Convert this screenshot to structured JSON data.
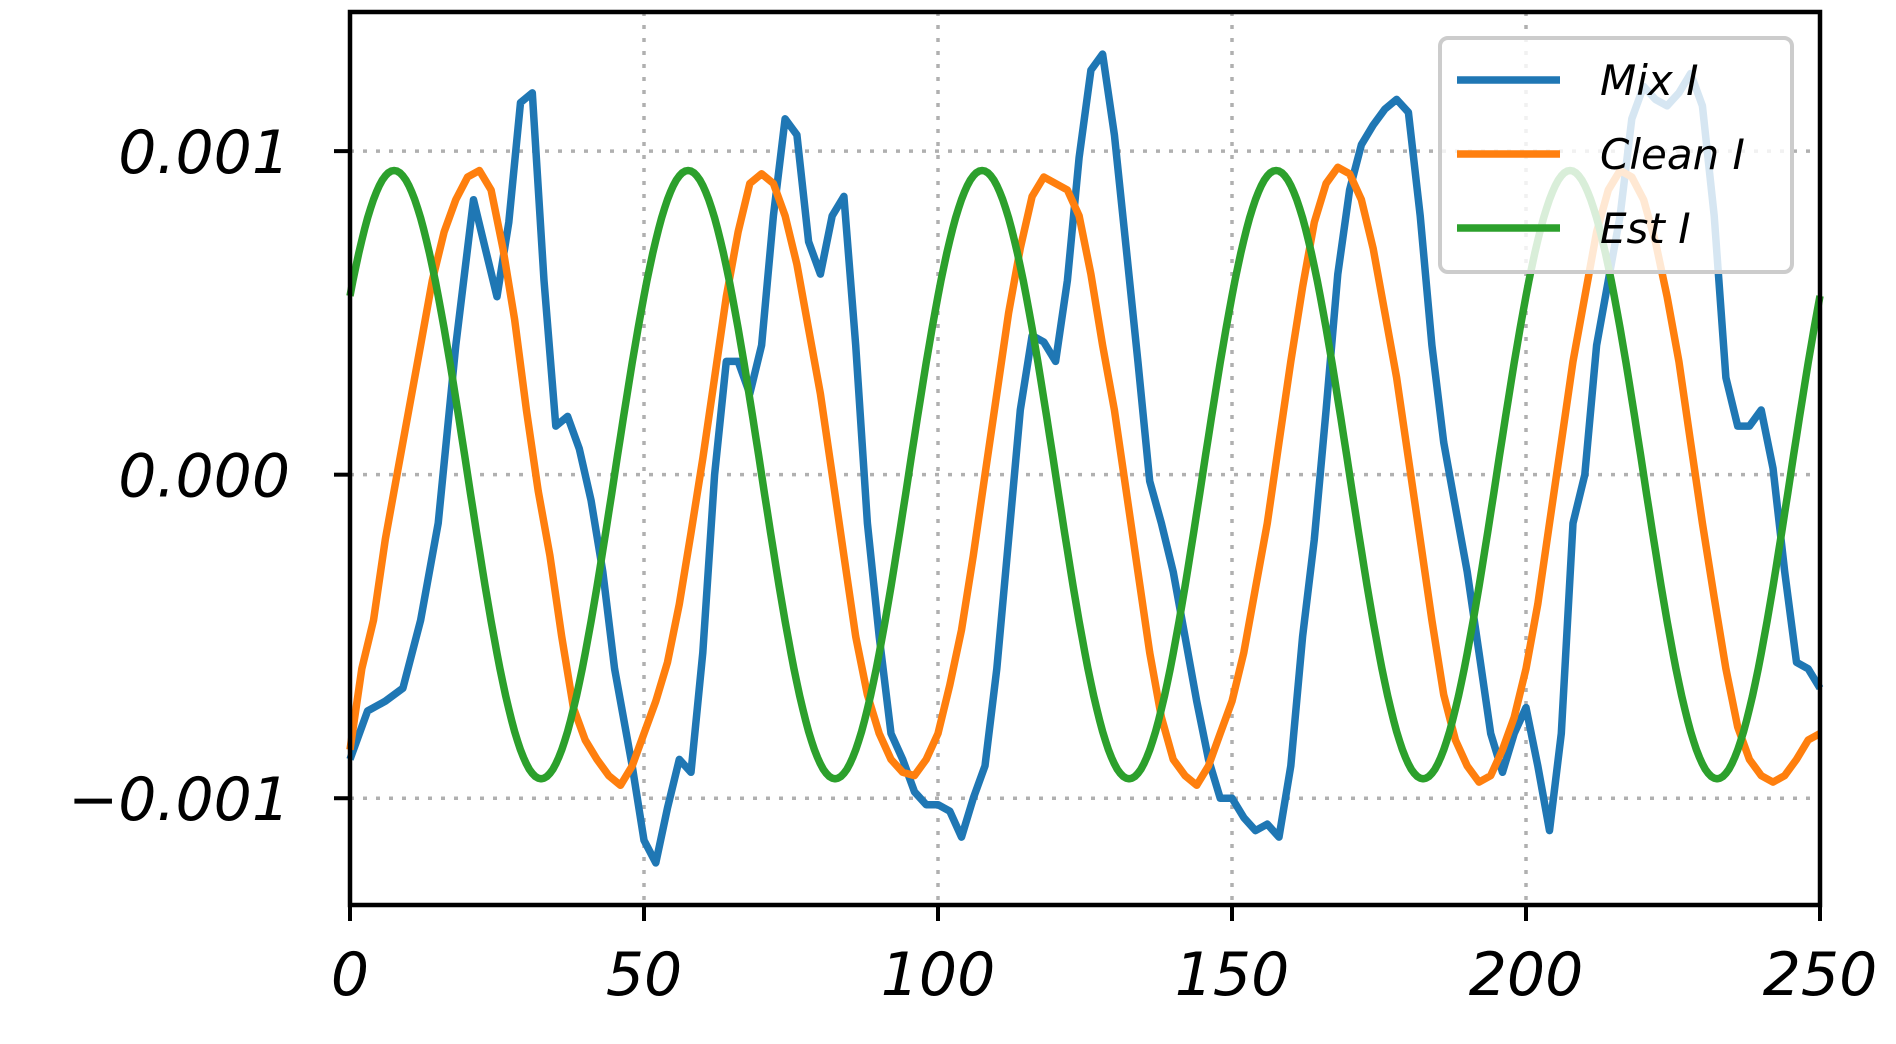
{
  "chart_data": {
    "type": "line",
    "title": "",
    "xlabel": "",
    "ylabel": "",
    "xlim": [
      0,
      250
    ],
    "ylim": [
      -0.00133,
      0.00143
    ],
    "grid": true,
    "legend_position": "top-right",
    "x_ticks": [
      {
        "value": 0,
        "label": "0"
      },
      {
        "value": 50,
        "label": "50"
      },
      {
        "value": 100,
        "label": "100"
      },
      {
        "value": 150,
        "label": "150"
      },
      {
        "value": 200,
        "label": "200"
      },
      {
        "value": 250,
        "label": "250"
      }
    ],
    "y_ticks": [
      {
        "value": 0.001,
        "label": "0.001"
      },
      {
        "value": 0.0,
        "label": "0.000"
      },
      {
        "value": -0.001,
        "label": "−0.001"
      }
    ],
    "series": [
      {
        "name": "Mix I",
        "color": "#1f77b4",
        "x": [
          0,
          3,
          6,
          9,
          12,
          15,
          18,
          21,
          23,
          25,
          27,
          29,
          31,
          33,
          35,
          37,
          39,
          41,
          43,
          45,
          48,
          50,
          52,
          54,
          56,
          58,
          60,
          62,
          64,
          66,
          68,
          70,
          72,
          74,
          76,
          78,
          80,
          82,
          84,
          86,
          88,
          90,
          92,
          94,
          96,
          98,
          100,
          102,
          104,
          106,
          108,
          110,
          112,
          114,
          116,
          118,
          120,
          122,
          124,
          126,
          128,
          130,
          132,
          134,
          136,
          138,
          140,
          142,
          144,
          146,
          148,
          150,
          152,
          154,
          156,
          158,
          160,
          162,
          164,
          166,
          168,
          170,
          172,
          174,
          176,
          178,
          180,
          182,
          184,
          186,
          188,
          190,
          192,
          194,
          196,
          198,
          200,
          202,
          204,
          206,
          208,
          210,
          212,
          214,
          216,
          218,
          220,
          222,
          224,
          226,
          228,
          230,
          232,
          234,
          236,
          238,
          240,
          242,
          244,
          246,
          248,
          250
        ],
        "values": [
          -0.00088,
          -0.00073,
          -0.0007,
          -0.00066,
          -0.00045,
          -0.00015,
          0.0004,
          0.00085,
          0.0007,
          0.00055,
          0.00078,
          0.00115,
          0.00118,
          0.0006,
          0.00015,
          0.00018,
          8e-05,
          -8e-05,
          -0.0003,
          -0.0006,
          -0.0009,
          -0.00113,
          -0.0012,
          -0.00103,
          -0.00088,
          -0.00092,
          -0.00055,
          0.0,
          0.00035,
          0.00035,
          0.00025,
          0.0004,
          0.0008,
          0.0011,
          0.00105,
          0.00072,
          0.00062,
          0.0008,
          0.00086,
          0.0004,
          -0.00015,
          -0.0005,
          -0.0008,
          -0.00088,
          -0.00098,
          -0.00102,
          -0.00102,
          -0.00104,
          -0.00112,
          -0.001,
          -0.0009,
          -0.0006,
          -0.0002,
          0.0002,
          0.00043,
          0.00041,
          0.00035,
          0.0006,
          0.00098,
          0.00125,
          0.0013,
          0.00105,
          0.0007,
          0.00035,
          -2e-05,
          -0.00015,
          -0.0003,
          -0.0005,
          -0.0007,
          -0.00088,
          -0.001,
          -0.001,
          -0.00106,
          -0.0011,
          -0.00108,
          -0.00112,
          -0.0009,
          -0.0005,
          -0.0002,
          0.0002,
          0.00062,
          0.00088,
          0.00102,
          0.00108,
          0.00113,
          0.00116,
          0.00112,
          0.0008,
          0.0004,
          0.0001,
          -0.0001,
          -0.0003,
          -0.00055,
          -0.0008,
          -0.00092,
          -0.0008,
          -0.00072,
          -0.0009,
          -0.0011,
          -0.0008,
          -0.00015,
          0.0,
          0.0004,
          0.0006,
          0.0008,
          0.0011,
          0.0012,
          0.00116,
          0.00114,
          0.00118,
          0.00124,
          0.00114,
          0.0008,
          0.0003,
          0.00015,
          0.00015,
          0.0002,
          2e-05,
          -0.0003,
          -0.00058,
          -0.0006,
          -0.00066
        ]
      },
      {
        "name": "Clean I",
        "color": "#ff7f0e",
        "x": [
          0,
          2,
          4,
          6,
          8,
          10,
          12,
          14,
          16,
          18,
          20,
          22,
          24,
          26,
          28,
          30,
          32,
          34,
          36,
          38,
          40,
          42,
          44,
          46,
          48,
          50,
          52,
          54,
          56,
          58,
          60,
          62,
          64,
          66,
          68,
          70,
          72,
          74,
          76,
          78,
          80,
          82,
          84,
          86,
          88,
          90,
          92,
          94,
          96,
          98,
          100,
          102,
          104,
          106,
          108,
          110,
          112,
          114,
          116,
          118,
          120,
          122,
          124,
          126,
          128,
          130,
          132,
          134,
          136,
          138,
          140,
          142,
          144,
          146,
          148,
          150,
          152,
          154,
          156,
          158,
          160,
          162,
          164,
          166,
          168,
          170,
          172,
          174,
          176,
          178,
          180,
          182,
          184,
          186,
          188,
          190,
          192,
          194,
          196,
          198,
          200,
          202,
          204,
          206,
          208,
          210,
          212,
          214,
          216,
          218,
          220,
          222,
          224,
          226,
          228,
          230,
          232,
          234,
          236,
          238,
          240,
          242,
          244,
          246,
          248,
          250
        ],
        "values": [
          -0.00085,
          -0.0006,
          -0.00045,
          -0.0002,
          0.0,
          0.0002,
          0.0004,
          0.0006,
          0.00075,
          0.00085,
          0.00092,
          0.00094,
          0.00088,
          0.0007,
          0.00048,
          0.0002,
          -5e-05,
          -0.00025,
          -0.0005,
          -0.00072,
          -0.00082,
          -0.00088,
          -0.00093,
          -0.00096,
          -0.0009,
          -0.0008,
          -0.0007,
          -0.00058,
          -0.0004,
          -0.00018,
          5e-05,
          0.0003,
          0.00055,
          0.00075,
          0.0009,
          0.00093,
          0.0009,
          0.0008,
          0.00065,
          0.00045,
          0.00025,
          0.0,
          -0.00025,
          -0.0005,
          -0.00068,
          -0.0008,
          -0.00088,
          -0.00092,
          -0.00093,
          -0.00088,
          -0.0008,
          -0.00065,
          -0.00048,
          -0.00025,
          0.0,
          0.00025,
          0.0005,
          0.0007,
          0.00086,
          0.00092,
          0.0009,
          0.00088,
          0.0008,
          0.00062,
          0.0004,
          0.0002,
          -5e-05,
          -0.0003,
          -0.00055,
          -0.00075,
          -0.00088,
          -0.00093,
          -0.00096,
          -0.0009,
          -0.0008,
          -0.0007,
          -0.00055,
          -0.00035,
          -0.00015,
          0.0001,
          0.00035,
          0.00058,
          0.00078,
          0.0009,
          0.00095,
          0.00093,
          0.00085,
          0.0007,
          0.0005,
          0.0003,
          5e-05,
          -0.0002,
          -0.00045,
          -0.00068,
          -0.00082,
          -0.0009,
          -0.00095,
          -0.00093,
          -0.00085,
          -0.00075,
          -0.0006,
          -0.0004,
          -0.00015,
          0.0001,
          0.00035,
          0.00055,
          0.00075,
          0.00088,
          0.00094,
          0.00092,
          0.00085,
          0.00072,
          0.00055,
          0.00035,
          0.0001,
          -0.00015,
          -0.00038,
          -0.0006,
          -0.00078,
          -0.00088,
          -0.00093,
          -0.00095,
          -0.00093,
          -0.00088,
          -0.00082,
          -0.0008
        ]
      },
      {
        "name": "Est I",
        "color": "#2ca02c",
        "function": "sine",
        "amplitude": 0.00094,
        "period": 50,
        "peak_x": 7.5,
        "x_start": 0,
        "x_end": 250
      }
    ]
  }
}
